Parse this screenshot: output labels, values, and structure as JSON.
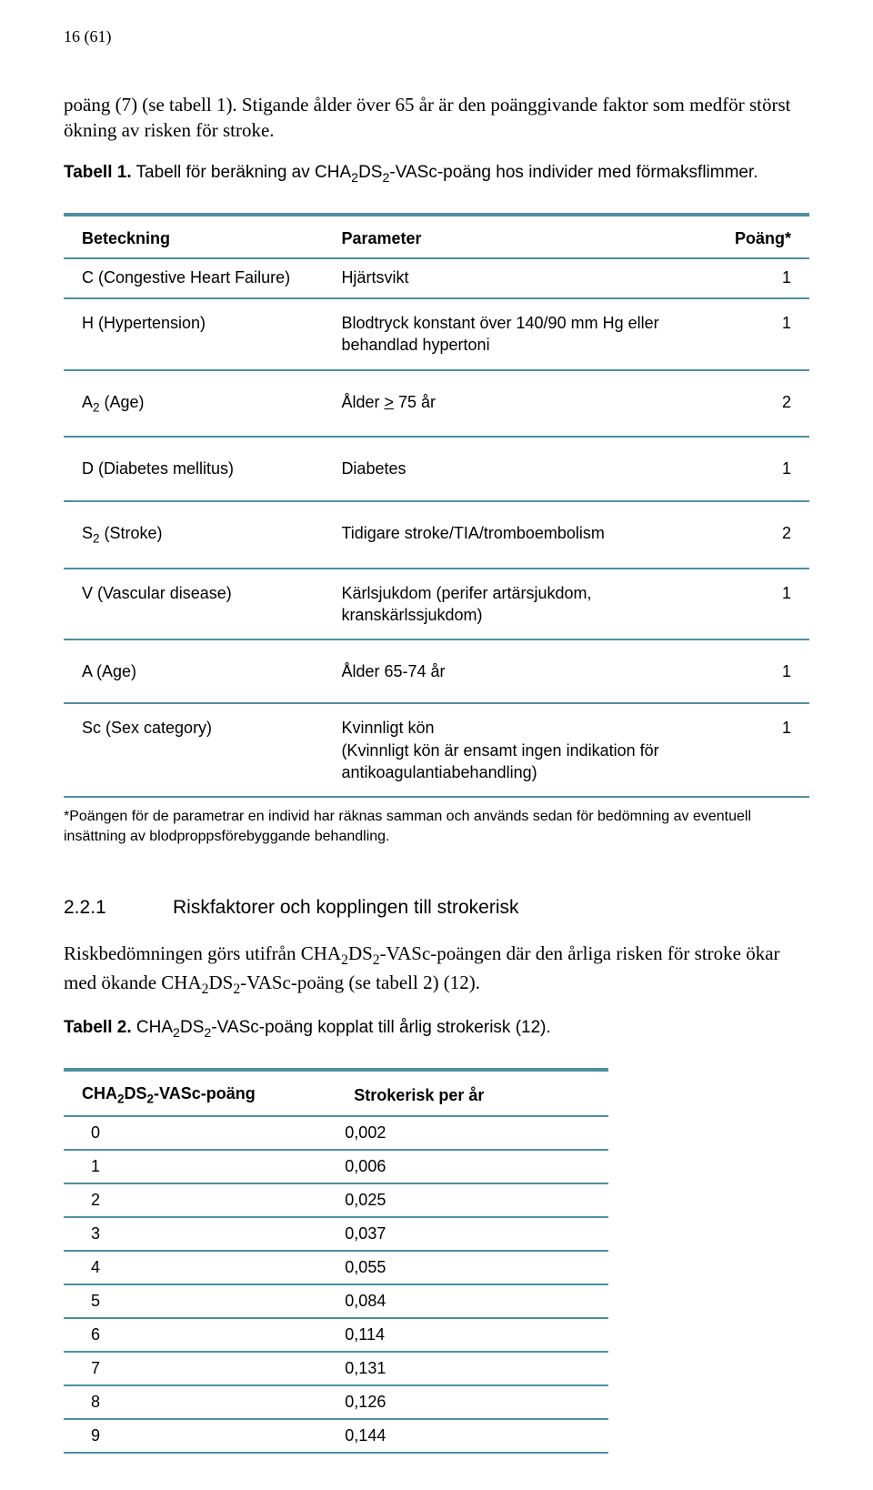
{
  "page_label": "16 (61)",
  "intro_paragraph": "poäng (7) (se tabell 1). Stigande ålder över 65 år är den poänggivande faktor som medför störst ökning av risken för stroke.",
  "table1": {
    "caption_bold": "Tabell 1.",
    "caption_rest_a": " Tabell för beräkning av CHA",
    "caption_sub1": "2",
    "caption_rest_b": "DS",
    "caption_sub2": "2",
    "caption_rest_c": "-VASc-poäng hos individer med förmaksflimmer.",
    "headers": {
      "c1": "Beteckning",
      "c2": "Parameter",
      "c3": "Poäng*"
    },
    "rows": [
      {
        "c1": "C (Congestive Heart Failure)",
        "c2": "Hjärtsvikt",
        "c3": "1",
        "tight": true
      },
      {
        "c1": "H (Hypertension)",
        "c2": "Blodtryck konstant över 140/90 mm Hg eller behandlad hypertoni",
        "c3": "1"
      },
      {
        "c1_pre": "A",
        "c1_sub": "2",
        "c1_post": " (Age)",
        "c2_pre": "Ålder ",
        "c2_underline": ">",
        "c2_post": " 75 år",
        "c3": "2",
        "wide": true
      },
      {
        "c1": "D (Diabetes mellitus)",
        "c2": "Diabetes",
        "c3": "1",
        "wide": true
      },
      {
        "c1_pre": "S",
        "c1_sub": "2",
        "c1_post": " (Stroke)",
        "c2": "Tidigare stroke/TIA/tromboembolism",
        "c3": "2",
        "wide": true
      },
      {
        "c1": "V (Vascular disease)",
        "c2": "Kärlsjukdom (perifer artärsjukdom, kranskärlssjukdom)",
        "c3": "1"
      },
      {
        "c1": "A (Age)",
        "c2": "Ålder 65-74 år",
        "c3": "1",
        "wide": true
      },
      {
        "c1": "Sc (Sex category)",
        "c2": "Kvinnligt kön\n(Kvinnligt kön är ensamt ingen indikation för antikoagulantiabehandling)",
        "c3": "1"
      }
    ]
  },
  "footnote": "*Poängen för de parametrar en individ har räknas samman och används sedan för bedömning av eventuell insättning av blodproppsförebyggande behandling.",
  "section": {
    "number": "2.2.1",
    "title": "Riskfaktorer och kopplingen till strokerisk"
  },
  "section_body": {
    "p1a": "Riskbedömningen görs utifrån CHA",
    "p1b": "DS",
    "p1c": "-VASc-poängen där den årliga risken för stroke ökar med ökande CHA",
    "p1d": "DS",
    "p1e": "-VASc-poäng (se tabell 2) (12).",
    "sub": "2"
  },
  "table2": {
    "caption_bold": "Tabell 2.",
    "caption_a": " CHA",
    "caption_b": "DS",
    "caption_c": "-VASc-poäng kopplat till årlig strokerisk (12).",
    "sub": "2",
    "headers": {
      "c1_a": "CHA",
      "c1_b": "DS",
      "c1_c": "-VASc-poäng",
      "c1_sub": "2",
      "c2": "Strokerisk per år"
    },
    "rows": [
      {
        "c1": "0",
        "c2": "0,002"
      },
      {
        "c1": "1",
        "c2": "0,006"
      },
      {
        "c1": "2",
        "c2": "0,025"
      },
      {
        "c1": "3",
        "c2": "0,037"
      },
      {
        "c1": "4",
        "c2": "0,055"
      },
      {
        "c1": "5",
        "c2": "0,084"
      },
      {
        "c1": "6",
        "c2": "0,114"
      },
      {
        "c1": "7",
        "c2": "0,131"
      },
      {
        "c1": "8",
        "c2": "0,126"
      },
      {
        "c1": "9",
        "c2": "0,144"
      }
    ]
  },
  "colors": {
    "rule": "#4e8fa0",
    "text": "#000000",
    "background": "#ffffff"
  }
}
